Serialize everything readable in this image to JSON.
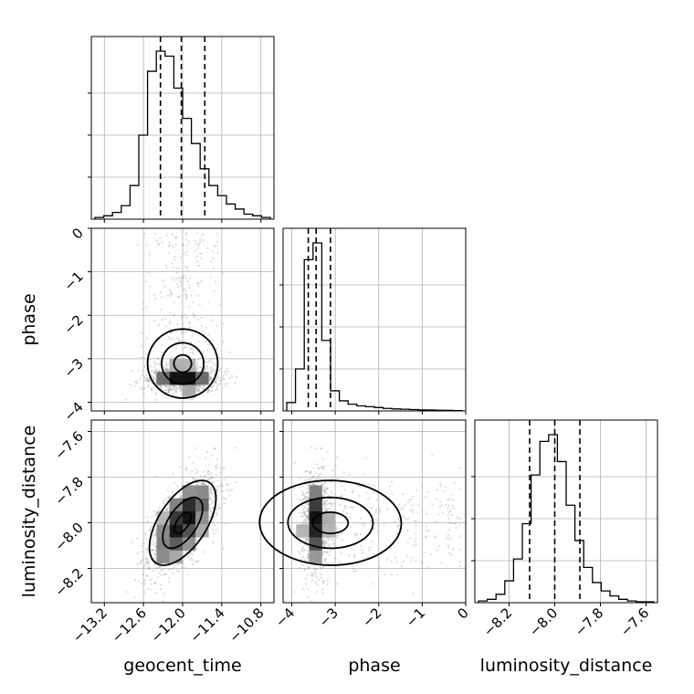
{
  "chart_data": {
    "type": "corner",
    "parameters": [
      {
        "name": "geocent_time",
        "label": "geocent_time",
        "range": [
          -13.4,
          -10.6
        ],
        "ticks": [
          -13.2,
          -12.6,
          -12.0,
          -11.4,
          -10.8
        ],
        "tick_labels": [
          "−13.2",
          "−12.6",
          "−12.0",
          "−11.4",
          "−10.8"
        ],
        "quantiles": [
          -12.34,
          -12.02,
          -11.66
        ],
        "hist_counts": [
          1,
          2,
          4,
          8,
          20,
          50,
          88,
          100,
          97,
          78,
          60,
          45,
          30,
          20,
          14,
          9,
          6,
          3,
          2,
          1
        ]
      },
      {
        "name": "phase",
        "label": "phase",
        "range": [
          -4.2,
          0.0
        ],
        "ticks": [
          -4,
          -3,
          -2,
          -1,
          0
        ],
        "tick_labels": [
          "−4",
          "−3",
          "−2",
          "−1",
          "0"
        ],
        "quantiles": [
          -3.62,
          -3.44,
          -3.11
        ],
        "hist_counts": [
          5,
          25,
          90,
          100,
          42,
          12,
          6,
          4,
          3,
          2.5,
          2,
          1.5,
          1.2,
          1,
          0.8,
          0.6,
          0.5,
          0.4,
          0.3,
          0.2
        ]
      },
      {
        "name": "luminosity_distance",
        "label": "luminosity_distance",
        "range": [
          -8.35,
          -7.55
        ],
        "ticks": [
          -8.2,
          -8.0,
          -7.8,
          -7.6
        ],
        "tick_labels": [
          "−8.2",
          "−8.0",
          "−7.8",
          "−7.6"
        ],
        "quantiles": [
          -8.11,
          -8.0,
          -7.89
        ],
        "hist_counts": [
          1,
          2,
          5,
          13,
          26,
          47,
          76,
          96,
          100,
          84,
          58,
          37,
          21,
          12,
          7,
          4,
          2,
          1,
          0.5,
          0.5
        ]
      }
    ],
    "correlations": {
      "geocent_time_vs_luminosity_distance": 0.6
    },
    "samples": 4000,
    "grid": true
  }
}
